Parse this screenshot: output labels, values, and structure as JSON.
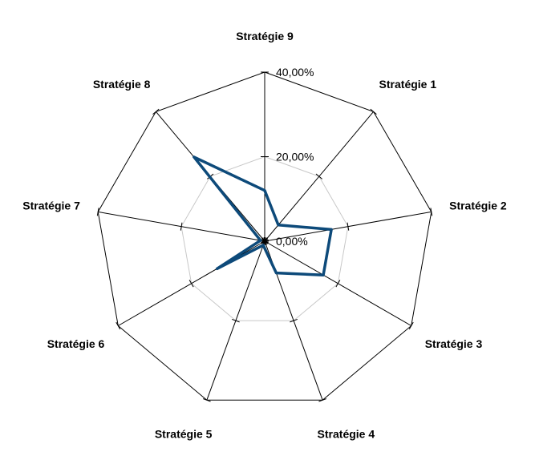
{
  "chart_data": {
    "type": "radar",
    "categories": [
      "Stratégie 9",
      "Stratégie 1",
      "Stratégie 2",
      "Stratégie 3",
      "Stratégie 4",
      "Stratégie 5",
      "Stratégie 6",
      "Stratégie 7",
      "Stratégie 8"
    ],
    "series": [
      {
        "values": [
          12.0,
          5.0,
          16.0,
          16.0,
          8.0,
          1.0,
          13.0,
          1.0,
          26.0
        ]
      }
    ],
    "rlim": [
      0,
      40
    ],
    "ticks": [
      0,
      20,
      40
    ],
    "tick_labels": [
      "0,00%",
      "20,00%",
      "40,00%"
    ],
    "grid": true,
    "legend": "none"
  },
  "colors": {
    "series": "#0d4a7a",
    "outer_ring": "#000000",
    "inner_ring": "#c8c8c8"
  }
}
